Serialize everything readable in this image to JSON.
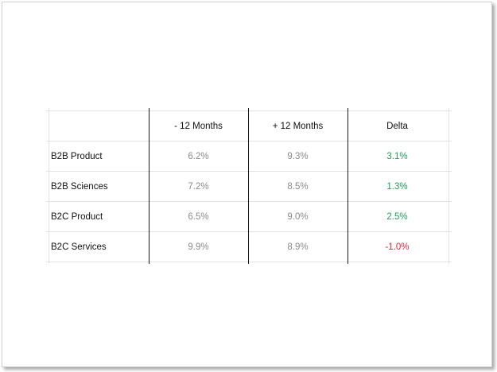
{
  "table": {
    "headers": [
      "- 12 Months",
      "+ 12 Months",
      "Delta"
    ],
    "rows": [
      {
        "label": "B2B Product",
        "minus12": "6.2%",
        "plus12": "9.3%",
        "delta": "3.1%"
      },
      {
        "label": "B2B Sciences",
        "minus12": "7.2%",
        "plus12": "8.5%",
        "delta": "1.3%"
      },
      {
        "label": "B2C Product",
        "minus12": "6.5%",
        "plus12": "9.0%",
        "delta": "2.5%"
      },
      {
        "label": "B2C Services",
        "minus12": "9.9%",
        "plus12": "8.9%",
        "delta": "-1.0%"
      }
    ]
  },
  "colors": {
    "positive": "#1e9e5a",
    "negative": "#e0243a",
    "value": "#8a8a8a"
  }
}
